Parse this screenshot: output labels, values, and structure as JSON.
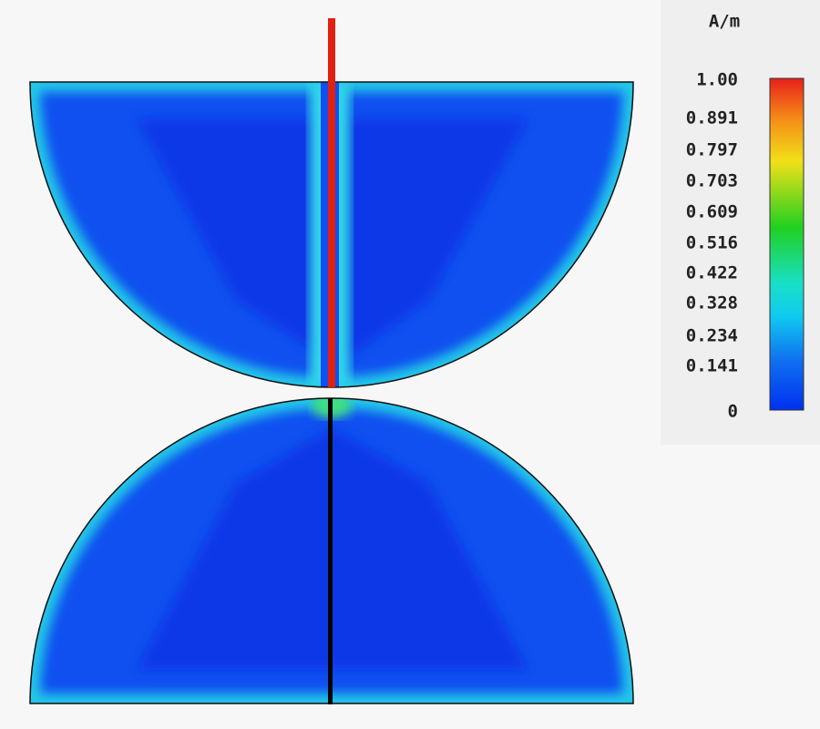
{
  "colorbar": {
    "unit": "A/m",
    "labels": [
      "1.00",
      "0.891",
      "0.797",
      "0.703",
      "0.609",
      "0.516",
      "0.422",
      "0.328",
      "0.234",
      "0.141",
      "0"
    ]
  }
}
